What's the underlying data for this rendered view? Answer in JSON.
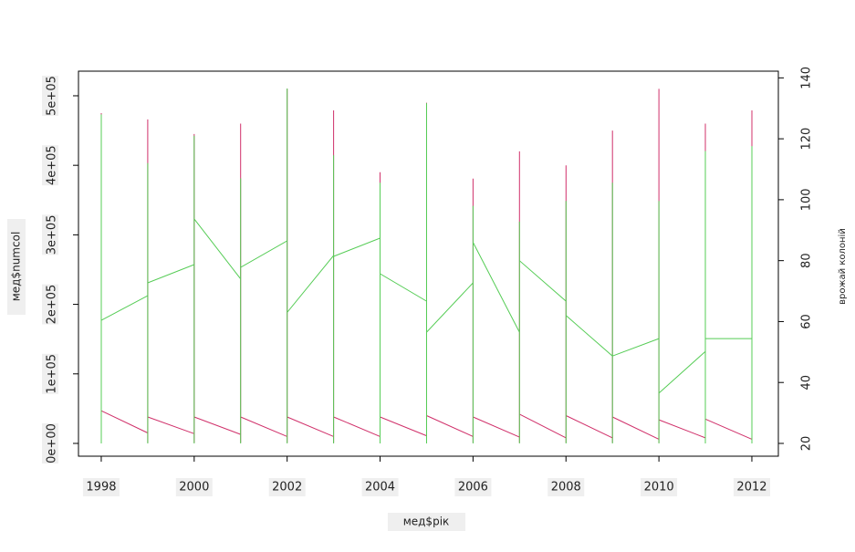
{
  "chart_data": {
    "type": "line",
    "xlabel": "мед$рік",
    "ylabel": "мед$numcol",
    "y2label": "врожай колоній",
    "xlim": [
      1997.51,
      2012.57
    ],
    "xticks": [
      1998,
      2000,
      2002,
      2004,
      2006,
      2008,
      2010,
      2012
    ],
    "ylim": [
      -18400,
      535400
    ],
    "yticks": [
      {
        "value": 0,
        "label": "0e+00"
      },
      {
        "value": 100000,
        "label": "1e+05"
      },
      {
        "value": 200000,
        "label": "2e+05"
      },
      {
        "value": 300000,
        "label": "3e+05"
      },
      {
        "value": 400000,
        "label": "4e+05"
      },
      {
        "value": 500000,
        "label": "5e+05"
      }
    ],
    "y2lim": [
      15.8,
      142.2
    ],
    "y2ticks": [
      20,
      40,
      60,
      80,
      100,
      120,
      140
    ],
    "series": [
      {
        "color": "#d0306a",
        "x": [
          1998,
          1998,
          1998,
          1999,
          1999,
          1999,
          1999,
          2000,
          2000,
          2000,
          2000,
          2001,
          2001,
          2001,
          2001,
          2002,
          2002,
          2002,
          2002,
          2003,
          2003,
          2003,
          2003,
          2004,
          2004,
          2004,
          2004,
          2005,
          2005,
          2005,
          2005,
          2006,
          2006,
          2006,
          2006,
          2007,
          2007,
          2007,
          2007,
          2008,
          2008,
          2008,
          2008,
          2009,
          2009,
          2009,
          2009,
          2010,
          2010,
          2010,
          2010,
          2011,
          2011,
          2011,
          2011,
          2012,
          2012,
          2012
        ],
        "values": [
          1000,
          475000,
          47000,
          15000,
          1000,
          466000,
          38000,
          14000,
          1000,
          445000,
          38000,
          13000,
          1000,
          460000,
          38000,
          10000,
          1000,
          510000,
          38000,
          10000,
          1000,
          479000,
          38000,
          10000,
          1000,
          390000,
          38000,
          11000,
          1000,
          490000,
          40000,
          10000,
          1000,
          381000,
          38000,
          9000,
          1000,
          420000,
          42000,
          8000,
          1000,
          400000,
          40000,
          8000,
          1000,
          450000,
          38000,
          6000,
          1000,
          510000,
          34000,
          8000,
          1000,
          460000,
          35000,
          6000,
          1000,
          479000
        ]
      },
      {
        "color": "#55cc55",
        "axis": "y2",
        "x": [
          1998,
          1998,
          1998,
          1999,
          1999,
          1999,
          1999,
          2000,
          2000,
          2000,
          2000,
          2001,
          2001,
          2001,
          2001,
          2002,
          2002,
          2002,
          2002,
          2003,
          2003,
          2003,
          2003,
          2004,
          2004,
          2004,
          2004,
          2005,
          2005,
          2005,
          2005,
          2006,
          2006,
          2006,
          2006,
          2007,
          2007,
          2007,
          2007,
          2008,
          2008,
          2008,
          2008,
          2009,
          2009,
          2009,
          2009,
          2010,
          2010,
          2010,
          2010,
          2011,
          2011,
          2011,
          2011,
          2012,
          2012,
          2012
        ],
        "values": [
          20,
          128,
          60.4,
          68.5,
          20,
          112,
          72.7,
          78.7,
          20,
          121,
          93.7,
          74,
          20,
          107,
          77.8,
          86.5,
          20,
          136.5,
          63,
          81.7,
          20,
          114.6,
          81.4,
          87.4,
          20,
          105.6,
          75.7,
          66.7,
          20,
          131.7,
          56.5,
          72.7,
          20,
          98,
          86,
          56.5,
          20,
          92.8,
          80,
          66.7,
          20,
          99.6,
          62,
          48.7,
          20,
          105.6,
          48.7,
          54.4,
          20,
          99.6,
          36.5,
          50.2,
          20,
          116,
          54.4,
          54.4,
          20,
          117.6
        ]
      }
    ]
  }
}
